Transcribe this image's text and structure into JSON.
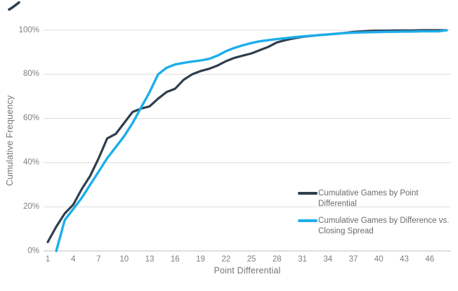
{
  "page": {
    "background": "#ffffff"
  },
  "corner_mark": {
    "color": "#2f3e4e"
  },
  "chart_data": {
    "type": "line",
    "title": "",
    "xlabel": "Point Differential",
    "ylabel": "Cumulative Frequency",
    "xlim": [
      1,
      48.5
    ],
    "ylim": [
      0,
      100
    ],
    "grid": "horizontal",
    "gridline_color": "#dcdcdc",
    "axisline_color": "#bfbfbf",
    "legend_position": "right-center",
    "x_ticks": [
      1,
      4,
      7,
      10,
      13,
      16,
      19,
      22,
      25,
      28,
      31,
      34,
      37,
      40,
      43,
      46
    ],
    "y_ticks": [
      {
        "value": 0,
        "label": "0%"
      },
      {
        "value": 20,
        "label": "20%"
      },
      {
        "value": 40,
        "label": "40%"
      },
      {
        "value": 60,
        "label": "60%"
      },
      {
        "value": 80,
        "label": "80%"
      },
      {
        "value": 100,
        "label": "100%"
      }
    ],
    "series": [
      {
        "name": "Cumulative Games by Point Differential",
        "color": "#2f3e4e",
        "stroke_width": 3.2,
        "x": [
          1,
          2,
          3,
          4,
          5,
          6,
          7,
          8,
          9,
          10,
          11,
          12,
          13,
          14,
          15,
          16,
          17,
          18,
          19,
          20,
          21,
          22,
          23,
          24,
          25,
          26,
          27,
          28,
          29,
          30,
          31,
          32,
          33,
          34,
          35,
          36,
          37,
          38,
          39,
          40,
          41,
          42,
          43,
          44,
          45,
          46,
          47,
          48
        ],
        "values": [
          4,
          11,
          17,
          21,
          28,
          34,
          42,
          51,
          53,
          58,
          63,
          64.5,
          65.5,
          69,
          72,
          73.5,
          77.5,
          80,
          81.5,
          82.5,
          84,
          86,
          87.5,
          88.5,
          89.5,
          91,
          92.5,
          94.5,
          95.5,
          96.3,
          97,
          97.4,
          97.8,
          98.1,
          98.4,
          98.8,
          99.2,
          99.5,
          99.7,
          99.8,
          99.8,
          99.9,
          99.9,
          99.9,
          100,
          100,
          100,
          100
        ]
      },
      {
        "name": "Cumulative Games by Difference vs. Closing Spread",
        "color": "#1caeeb",
        "stroke_width": 3.4,
        "x": [
          2,
          3,
          4,
          5,
          6,
          7,
          8,
          9,
          10,
          11,
          12,
          13,
          14,
          15,
          16,
          17,
          18,
          19,
          20,
          21,
          22,
          23,
          24,
          25,
          26,
          27,
          28,
          29,
          30,
          31,
          32,
          33,
          34,
          35,
          36,
          37,
          38,
          39,
          40,
          41,
          42,
          43,
          44,
          45,
          46,
          47,
          48
        ],
        "values": [
          0,
          14,
          19,
          24,
          30,
          36,
          42,
          47,
          52,
          58,
          65,
          72,
          80,
          83,
          84.5,
          85.2,
          85.8,
          86.3,
          87,
          88.5,
          90.5,
          92,
          93.2,
          94.2,
          95,
          95.5,
          96,
          96.4,
          96.8,
          97.2,
          97.5,
          97.8,
          98.1,
          98.4,
          98.7,
          98.9,
          99,
          99.1,
          99.2,
          99.3,
          99.3,
          99.4,
          99.4,
          99.5,
          99.5,
          99.5,
          100
        ]
      }
    ]
  },
  "legend": {
    "items": [
      {
        "label": "Cumulative Games by Point Differential"
      },
      {
        "label": "Cumulative Games by Difference vs. Closing Spread"
      }
    ]
  }
}
